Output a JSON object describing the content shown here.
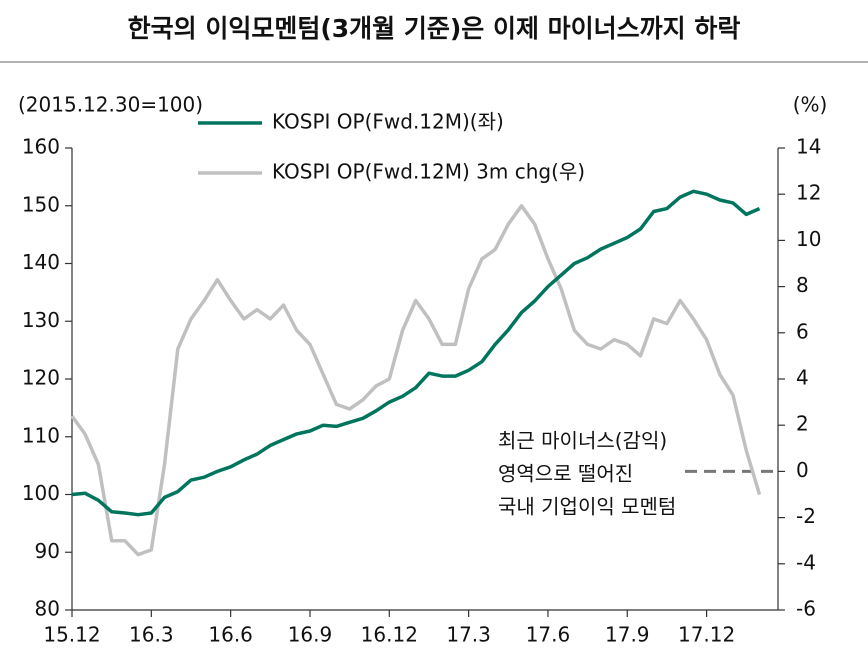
{
  "chart_data": {
    "type": "line",
    "title": "한국의 이익모멘텀(3개월 기준)은 이제 마이너스까지 하락",
    "y_label": "(2015.12.30=100)",
    "y2_label": "(%)",
    "x": [
      0,
      0.5,
      1,
      1.5,
      2,
      2.5,
      3,
      3.5,
      4,
      4.5,
      5,
      5.5,
      6,
      6.5,
      7,
      7.5,
      8,
      8.5,
      9,
      9.5,
      10,
      10.5,
      11,
      11.5,
      12,
      12.5,
      13,
      13.5,
      14,
      14.5,
      15,
      15.5,
      16,
      16.5,
      17,
      17.5,
      18,
      18.5,
      19,
      19.5,
      20,
      20.5,
      21,
      21.5,
      22,
      22.5,
      23,
      23.5,
      24,
      24.5,
      25,
      25.5,
      26
    ],
    "xlim": [
      0,
      26.7
    ],
    "xticks": [
      {
        "value": 0,
        "label": "15.12"
      },
      {
        "value": 3,
        "label": "16.3"
      },
      {
        "value": 6,
        "label": "16.6"
      },
      {
        "value": 9,
        "label": "16.9"
      },
      {
        "value": 12,
        "label": "16.12"
      },
      {
        "value": 15,
        "label": "17.3"
      },
      {
        "value": 18,
        "label": "17.6"
      },
      {
        "value": 21,
        "label": "17.9"
      },
      {
        "value": 24,
        "label": "17.12"
      }
    ],
    "ylim": [
      80,
      160
    ],
    "yticks": [
      80,
      90,
      100,
      110,
      120,
      130,
      140,
      150,
      160
    ],
    "y2lim": [
      -6,
      14
    ],
    "y2ticks": [
      -6,
      -4,
      -2,
      0,
      2,
      4,
      6,
      8,
      10,
      12,
      14
    ],
    "legend": "top",
    "grid": false,
    "series": [
      {
        "name": "KOSPI OP(Fwd.12M)(좌)",
        "color": "#00755e",
        "axis": "y",
        "values": [
          100.0,
          100.2,
          99.0,
          97.0,
          96.8,
          96.5,
          96.8,
          99.5,
          100.5,
          102.5,
          103.0,
          104.0,
          104.8,
          106.0,
          107.0,
          108.5,
          109.5,
          110.5,
          111.0,
          112.0,
          111.8,
          112.5,
          113.2,
          114.5,
          116.0,
          117.0,
          118.5,
          121.0,
          120.5,
          120.5,
          121.5,
          123.0,
          126.0,
          128.5,
          131.5,
          133.5,
          136.0,
          138.0,
          140.0,
          141.0,
          142.5,
          143.5,
          144.5,
          146.0,
          149.0,
          149.5,
          151.5,
          152.5,
          152.0,
          151.0,
          150.5,
          148.5,
          149.5
        ]
      },
      {
        "name": "KOSPI OP(Fwd.12M) 3m chg(우)",
        "color": "#c0c0c0",
        "axis": "y2",
        "values": [
          2.4,
          1.6,
          0.3,
          -3.0,
          -3.0,
          -3.6,
          -3.4,
          0.3,
          5.3,
          6.6,
          7.4,
          8.3,
          7.4,
          6.6,
          7.0,
          6.6,
          7.2,
          6.1,
          5.5,
          4.2,
          2.9,
          2.7,
          3.1,
          3.7,
          4.0,
          6.1,
          7.4,
          6.6,
          5.5,
          5.5,
          7.9,
          9.2,
          9.6,
          10.7,
          11.5,
          10.7,
          9.2,
          7.9,
          6.1,
          5.5,
          5.3,
          5.7,
          5.5,
          5.0,
          6.6,
          6.4,
          7.4,
          6.6,
          5.7,
          4.2,
          3.3,
          0.9,
          -1.0
        ]
      }
    ],
    "reference_y2": 0,
    "annotation": [
      "최근 마이너스(감익)",
      "영역으로 떨어진",
      "국내 기업이익 모멘텀"
    ]
  }
}
